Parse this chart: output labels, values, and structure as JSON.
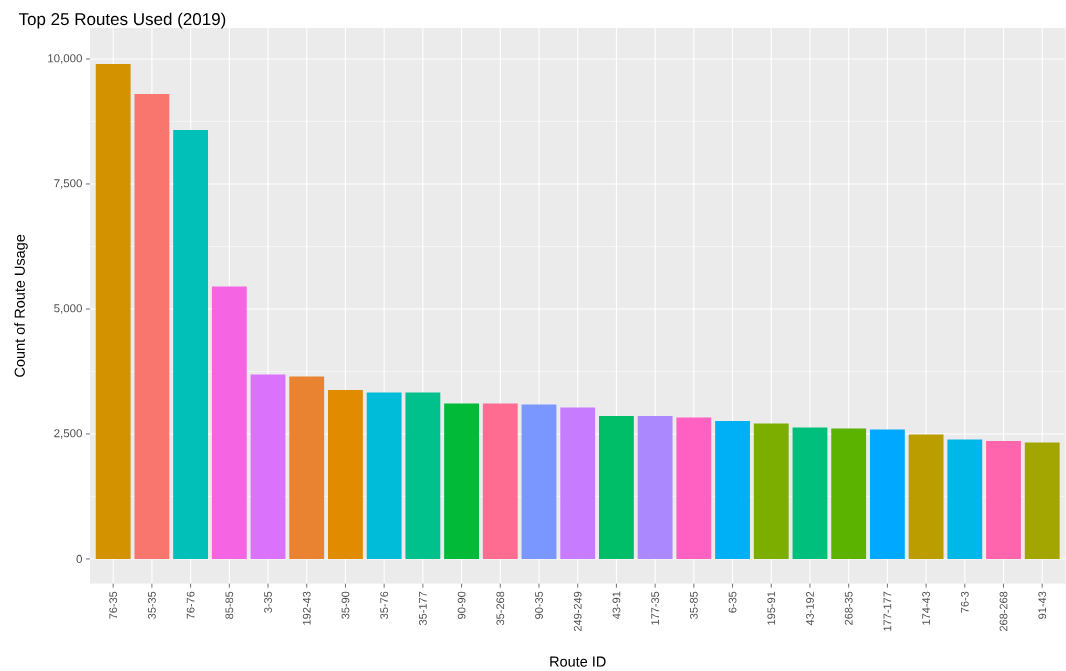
{
  "chart_data": {
    "type": "bar",
    "title": "Top 25 Routes Used (2019)",
    "xlabel": "Route ID",
    "ylabel": "Count of Route Usage",
    "categories": [
      "76-35",
      "35-35",
      "76-76",
      "85-85",
      "3-35",
      "192-43",
      "35-90",
      "35-76",
      "35-177",
      "90-90",
      "35-268",
      "90-35",
      "249-249",
      "43-91",
      "177-35",
      "35-85",
      "6-35",
      "195-91",
      "43-192",
      "268-35",
      "177-177",
      "174-43",
      "76-3",
      "268-268",
      "91-43"
    ],
    "values": [
      9900,
      9300,
      8580,
      5450,
      3690,
      3650,
      3380,
      3330,
      3330,
      3110,
      3110,
      3090,
      3030,
      2860,
      2860,
      2830,
      2760,
      2710,
      2630,
      2610,
      2590,
      2490,
      2390,
      2360,
      2330
    ],
    "colors": [
      "#D39200",
      "#F8766D",
      "#00C0B8",
      "#F564E3",
      "#DB72FB",
      "#EA8331",
      "#E08B00",
      "#00BCD8",
      "#00C08B",
      "#00BA38",
      "#FF6C91",
      "#7997FF",
      "#C77CFF",
      "#00BE67",
      "#AC88FF",
      "#FF61C3",
      "#00B0F6",
      "#7CAE00",
      "#00BF7D",
      "#5BB300",
      "#00A9FF",
      "#BB9D00",
      "#00B8E7",
      "#FF65AC",
      "#A3A500"
    ],
    "ylim": [
      -495,
      10620
    ],
    "yticks": [
      {
        "value": 0,
        "label": "0"
      },
      {
        "value": 2500,
        "label": "2,500"
      },
      {
        "value": 5000,
        "label": "5,000"
      },
      {
        "value": 7500,
        "label": "7,500"
      },
      {
        "value": 10000,
        "label": "10,000"
      }
    ],
    "grid": true
  }
}
